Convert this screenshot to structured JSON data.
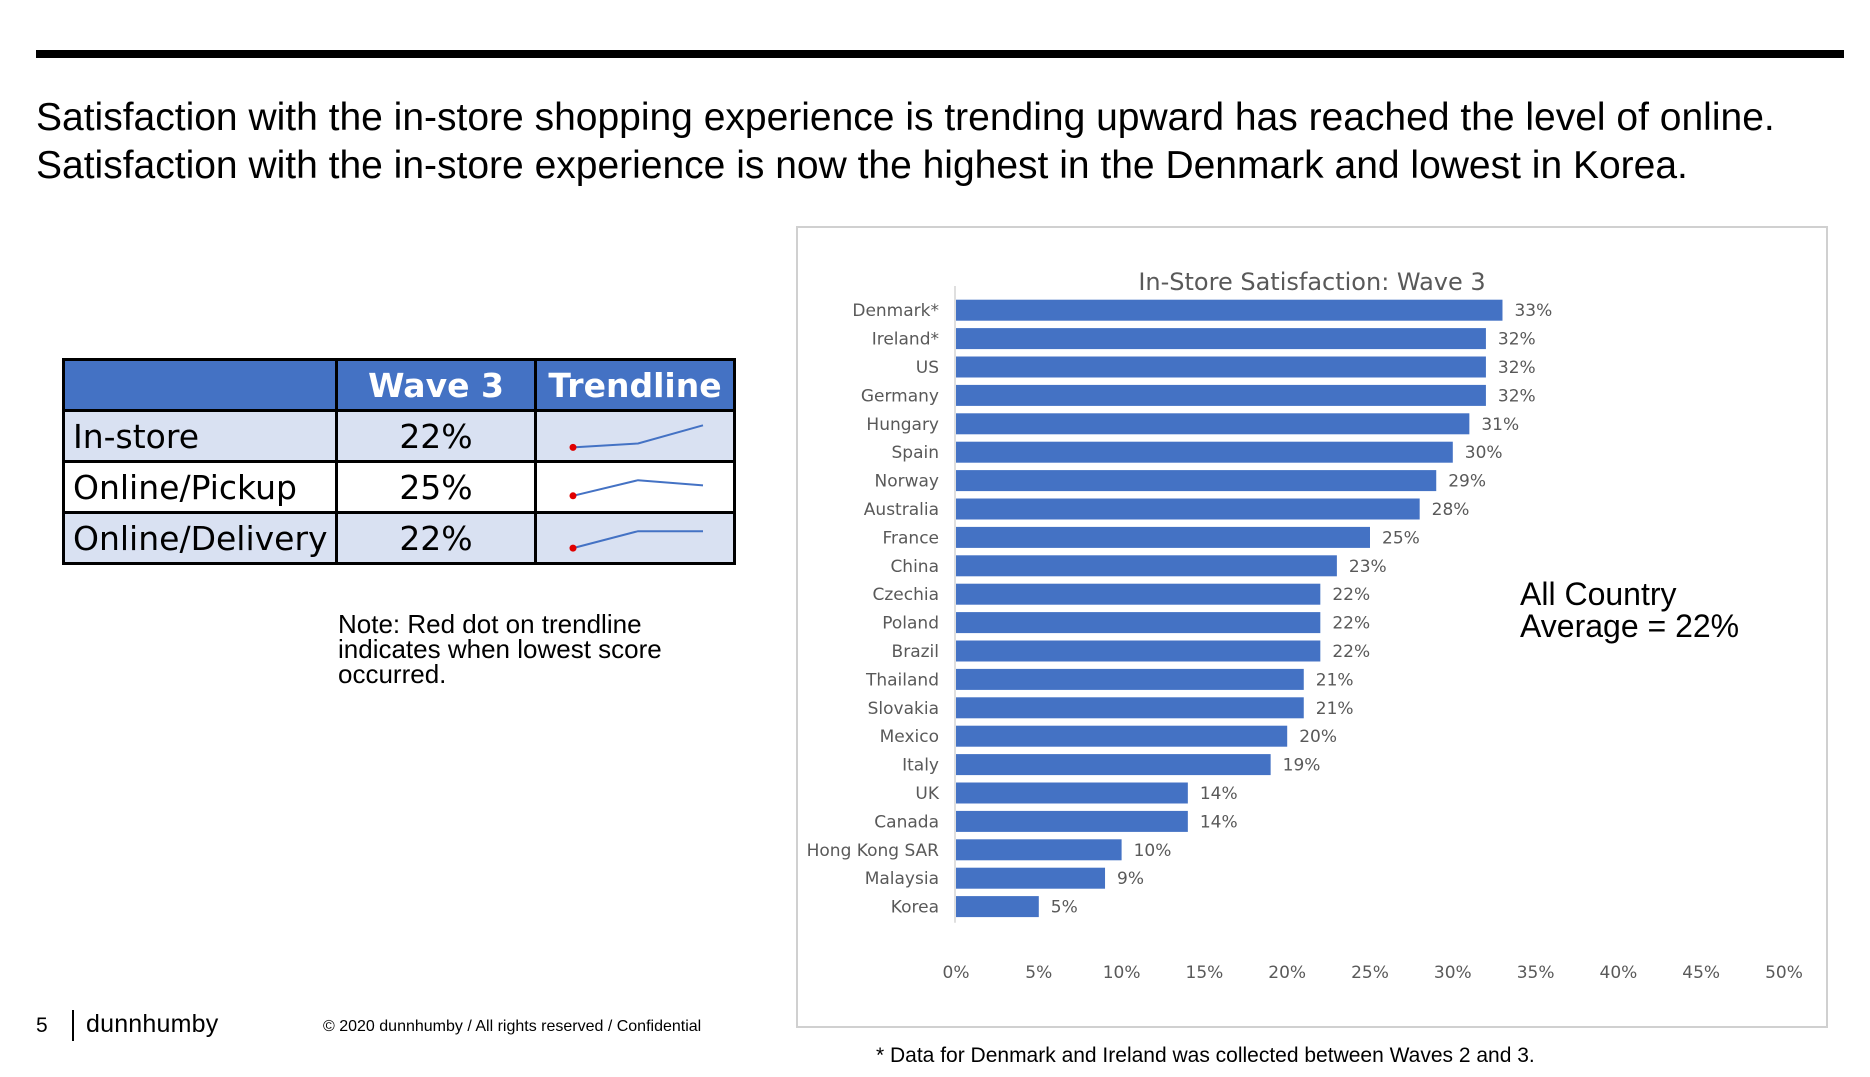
{
  "headline": {
    "line1": "Satisfaction with the in-store shopping experience is trending upward has reached the level of online.",
    "line2": "Satisfaction with the in-store experience is now the highest in the Denmark and lowest in Korea."
  },
  "table": {
    "headers": [
      "",
      "Wave 3",
      "Trendline"
    ],
    "rows": [
      {
        "label": "In-store",
        "value": "22%",
        "trend": [
          0.1,
          0.25,
          0.95
        ]
      },
      {
        "label": "Online/Pickup",
        "value": "25%",
        "trend": [
          0.2,
          0.8,
          0.6
        ]
      },
      {
        "label": "Online/Delivery",
        "value": "22%",
        "trend": [
          0.15,
          0.8,
          0.8
        ]
      }
    ],
    "accent_color": "#4472c4",
    "lowest_dot_color": "#e00000"
  },
  "note": {
    "line1": "Note:  Red dot on trendline",
    "line2": "indicates when lowest score",
    "line3": "occurred."
  },
  "chart_data": {
    "type": "bar",
    "orientation": "horizontal",
    "title": "In-Store Satisfaction: Wave 3",
    "categories": [
      "Denmark*",
      "Ireland*",
      "US",
      "Germany",
      "Hungary",
      "Spain",
      "Norway",
      "Australia",
      "France",
      "China",
      "Czechia",
      "Poland",
      "Brazil",
      "Thailand",
      "Slovakia",
      "Mexico",
      "Italy",
      "UK",
      "Canada",
      "Hong Kong SAR",
      "Malaysia",
      "Korea"
    ],
    "values": [
      33,
      32,
      32,
      32,
      31,
      30,
      29,
      28,
      25,
      23,
      22,
      22,
      22,
      21,
      21,
      20,
      19,
      14,
      14,
      10,
      9,
      5
    ],
    "value_labels": [
      "33%",
      "32%",
      "32%",
      "32%",
      "31%",
      "30%",
      "29%",
      "28%",
      "25%",
      "23%",
      "22%",
      "22%",
      "22%",
      "21%",
      "21%",
      "20%",
      "19%",
      "14%",
      "14%",
      "10%",
      "9%",
      "5%"
    ],
    "x_ticks": [
      "0%",
      "5%",
      "10%",
      "15%",
      "20%",
      "25%",
      "30%",
      "35%",
      "40%",
      "45%",
      "50%"
    ],
    "xlim": [
      0,
      50
    ],
    "xlabel": "",
    "ylabel": "",
    "grid": false,
    "bar_color": "#4472c4"
  },
  "average_note": {
    "line1": "All Country",
    "line2": "Average = 22%"
  },
  "footnote": "* Data for Denmark and Ireland was collected between Waves 2 and 3.",
  "footer": {
    "page_number": "5",
    "logo": "dunnhumby",
    "copyright": "© 2020 dunnhumby / All rights reserved / Confidential"
  }
}
